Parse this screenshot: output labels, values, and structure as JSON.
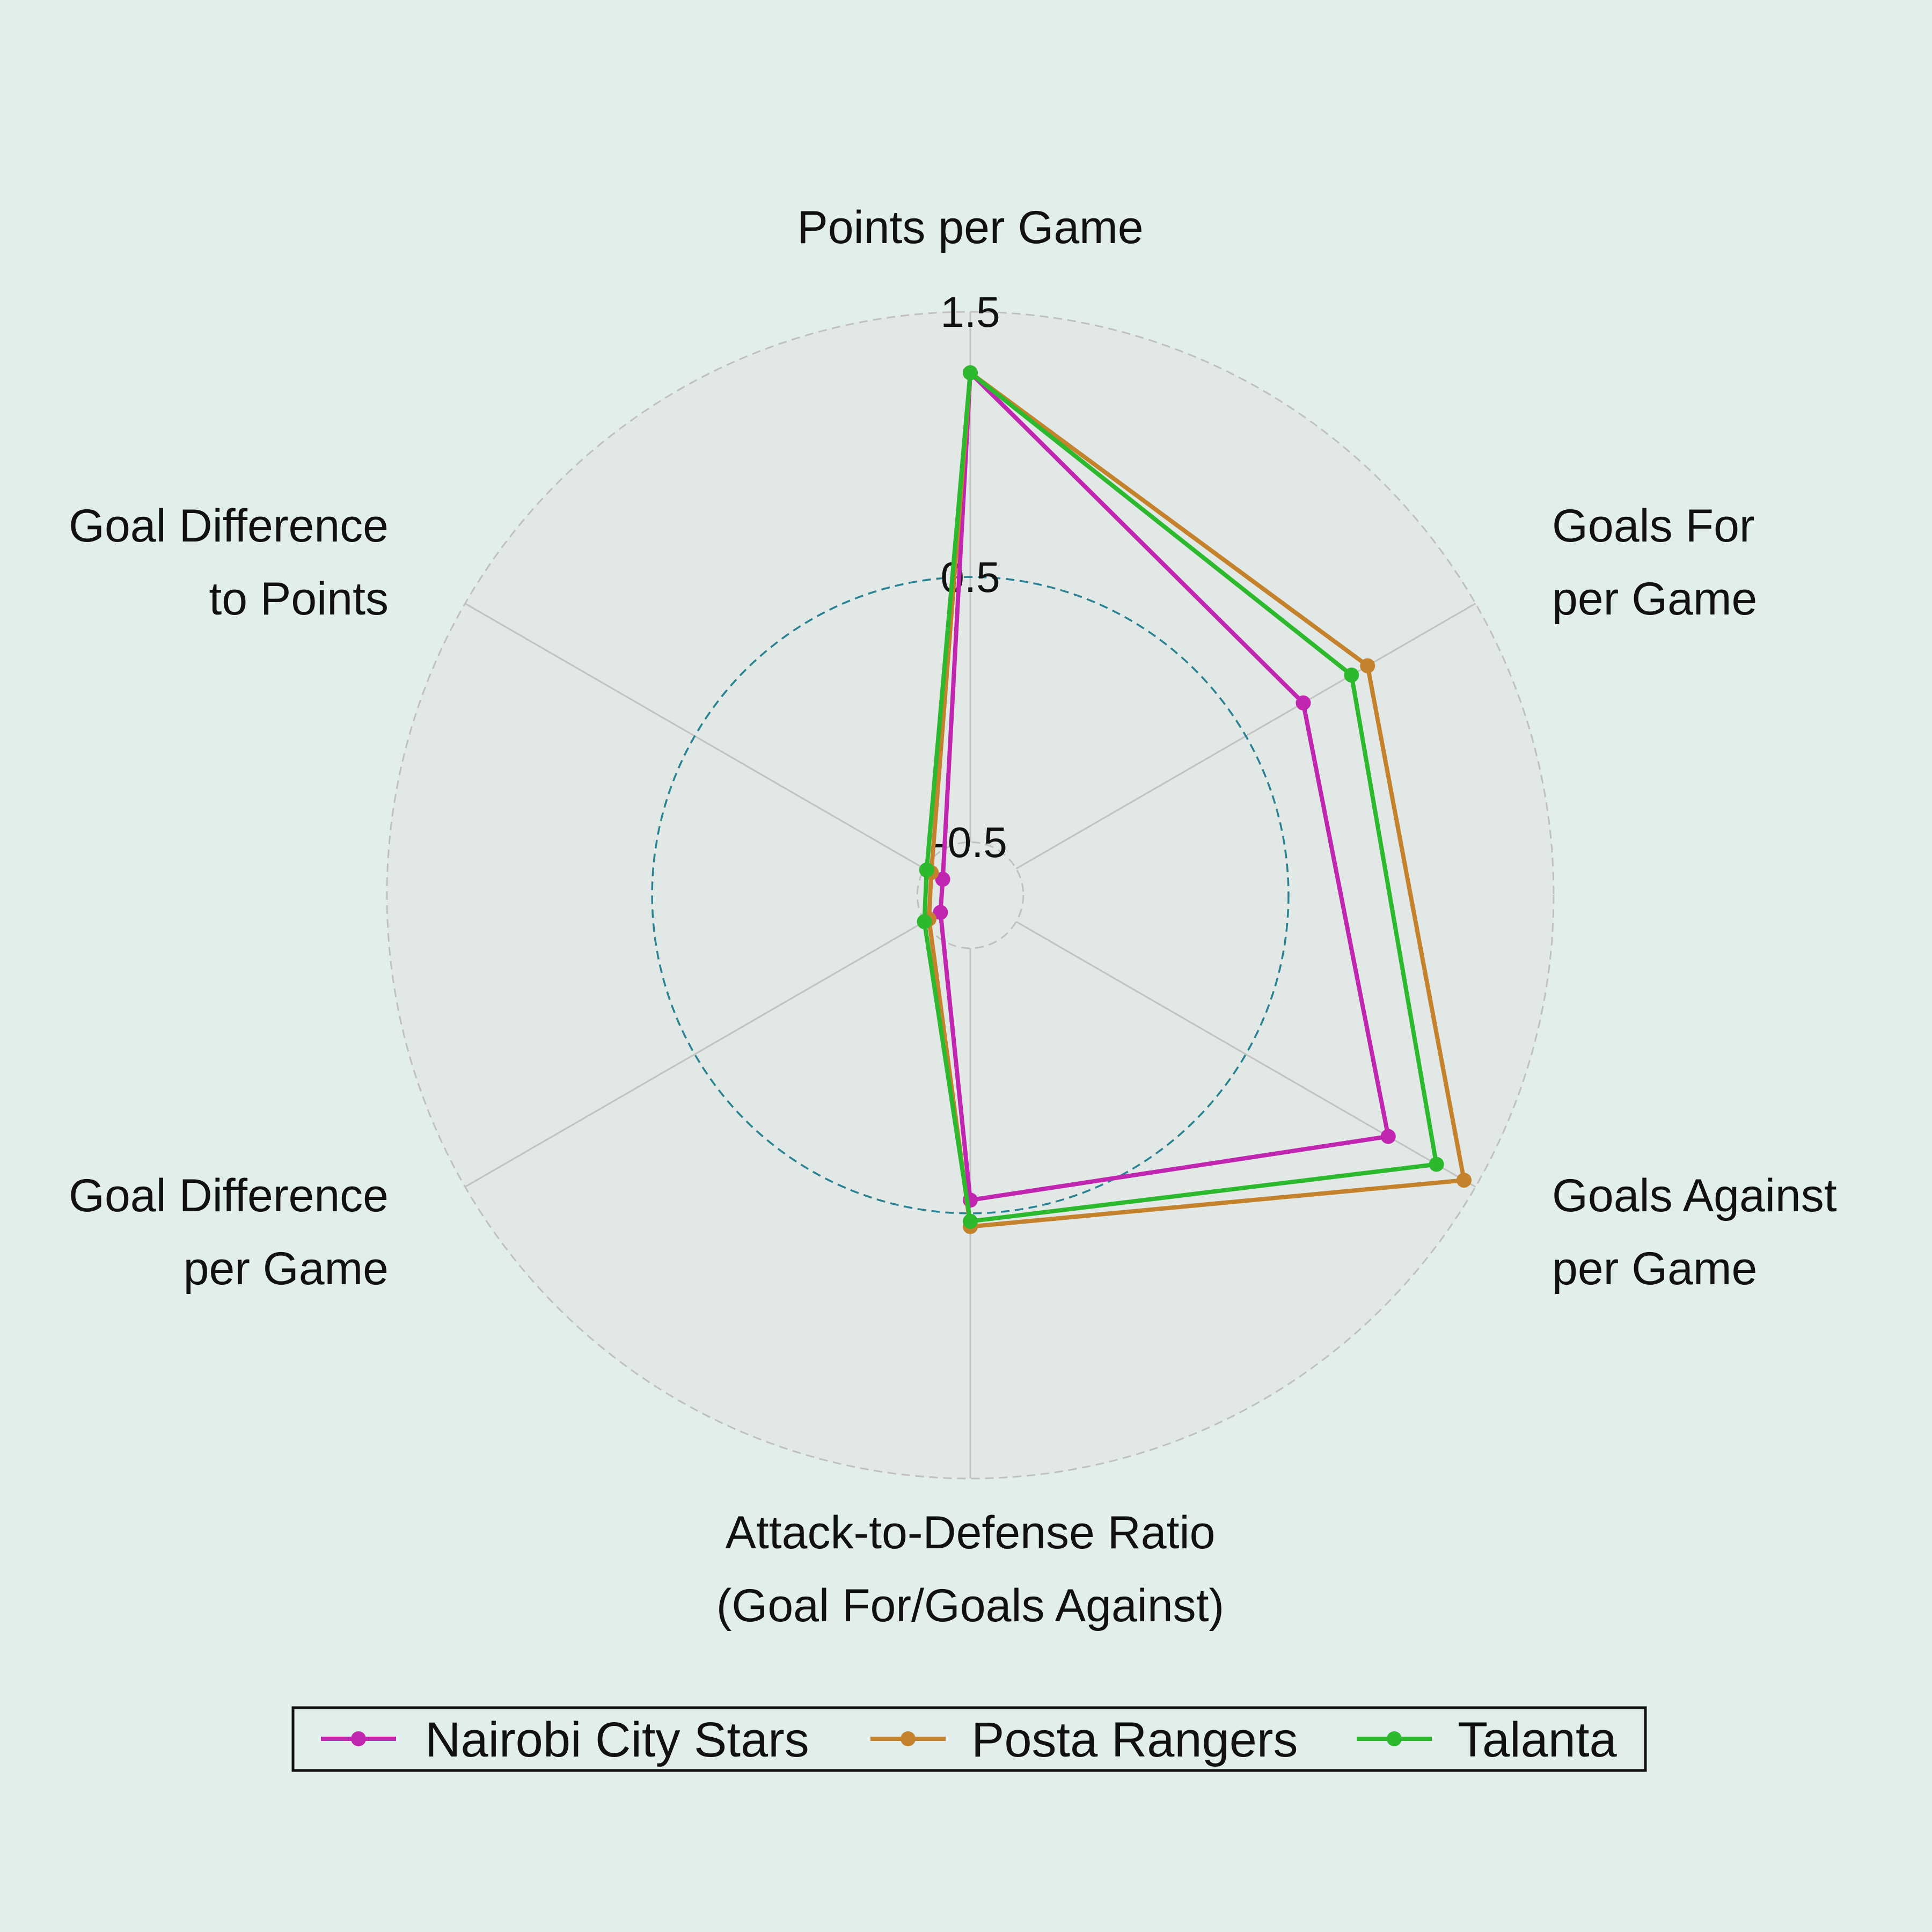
{
  "chart_data": {
    "type": "radar",
    "axes": [
      [
        "Points per Game"
      ],
      [
        "Goals For",
        "per Game"
      ],
      [
        "Goals Against",
        "per Game"
      ],
      [
        "Attack-to-Defense Ratio",
        "(Goal For/Goals Against)"
      ],
      [
        "Goal Difference",
        "per Game"
      ],
      [
        "Goal Difference",
        "to Points"
      ]
    ],
    "radial_range": [
      -0.7,
      1.5
    ],
    "ticks": [
      {
        "value": -0.5,
        "label": "-0.5"
      },
      {
        "value": 0.5,
        "label": "0.5"
      },
      {
        "value": 1.5,
        "label": "1.5"
      }
    ],
    "series": [
      {
        "name": "Nairobi City Stars",
        "color": "#c026b0",
        "values": [
          1.27,
          0.75,
          1.12,
          0.45,
          -0.57,
          -0.58
        ]
      },
      {
        "name": "Posta Rangers",
        "color": "#c4822c",
        "values": [
          1.27,
          1.03,
          1.45,
          0.55,
          -0.52,
          -0.53
        ]
      },
      {
        "name": "Talanta",
        "color": "#2db92d",
        "values": [
          1.27,
          0.96,
          1.33,
          0.53,
          -0.5,
          -0.51
        ]
      }
    ],
    "grid": true,
    "legend_position": "bottom"
  }
}
